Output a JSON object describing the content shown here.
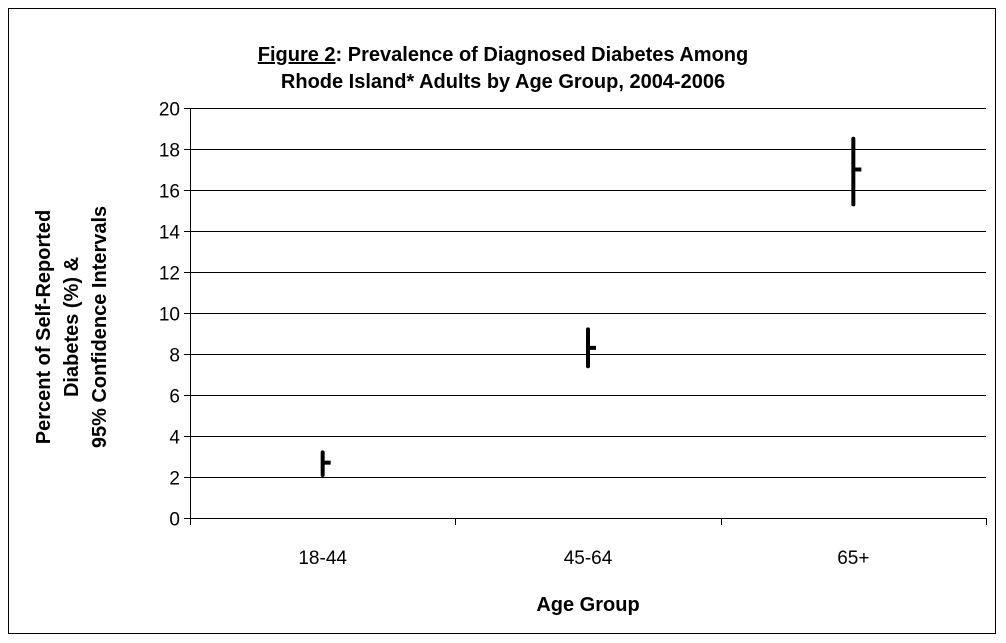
{
  "title": {
    "figure_label": "Figure 2",
    "line1_rest": ": Prevalence of Diagnosed Diabetes Among",
    "line2": "Rhode Island* Adults by Age Group, 2004-2006"
  },
  "chart_data": {
    "type": "scatter",
    "subtype": "point-estimate-with-confidence-interval",
    "categories": [
      "18-44",
      "45-64",
      "65+"
    ],
    "series": [
      {
        "estimate": [
          2.7,
          8.3,
          17.0
        ],
        "ci_lower": [
          2.1,
          7.4,
          15.3
        ],
        "ci_upper": [
          3.2,
          9.2,
          18.5
        ]
      }
    ],
    "xlabel": "Age Group",
    "ylabel_lines": [
      "Percent of Self-Reported",
      "Diabetes (%) &",
      "95% Confidence Intervals"
    ],
    "ylim": [
      0,
      20
    ],
    "yticks": [
      0,
      2,
      4,
      6,
      8,
      10,
      12,
      14,
      16,
      18,
      20
    ],
    "grid": "horizontal",
    "legend": "none",
    "colors": {
      "marks": "#000000",
      "grid": "#000000",
      "background": "#ffffff"
    }
  }
}
